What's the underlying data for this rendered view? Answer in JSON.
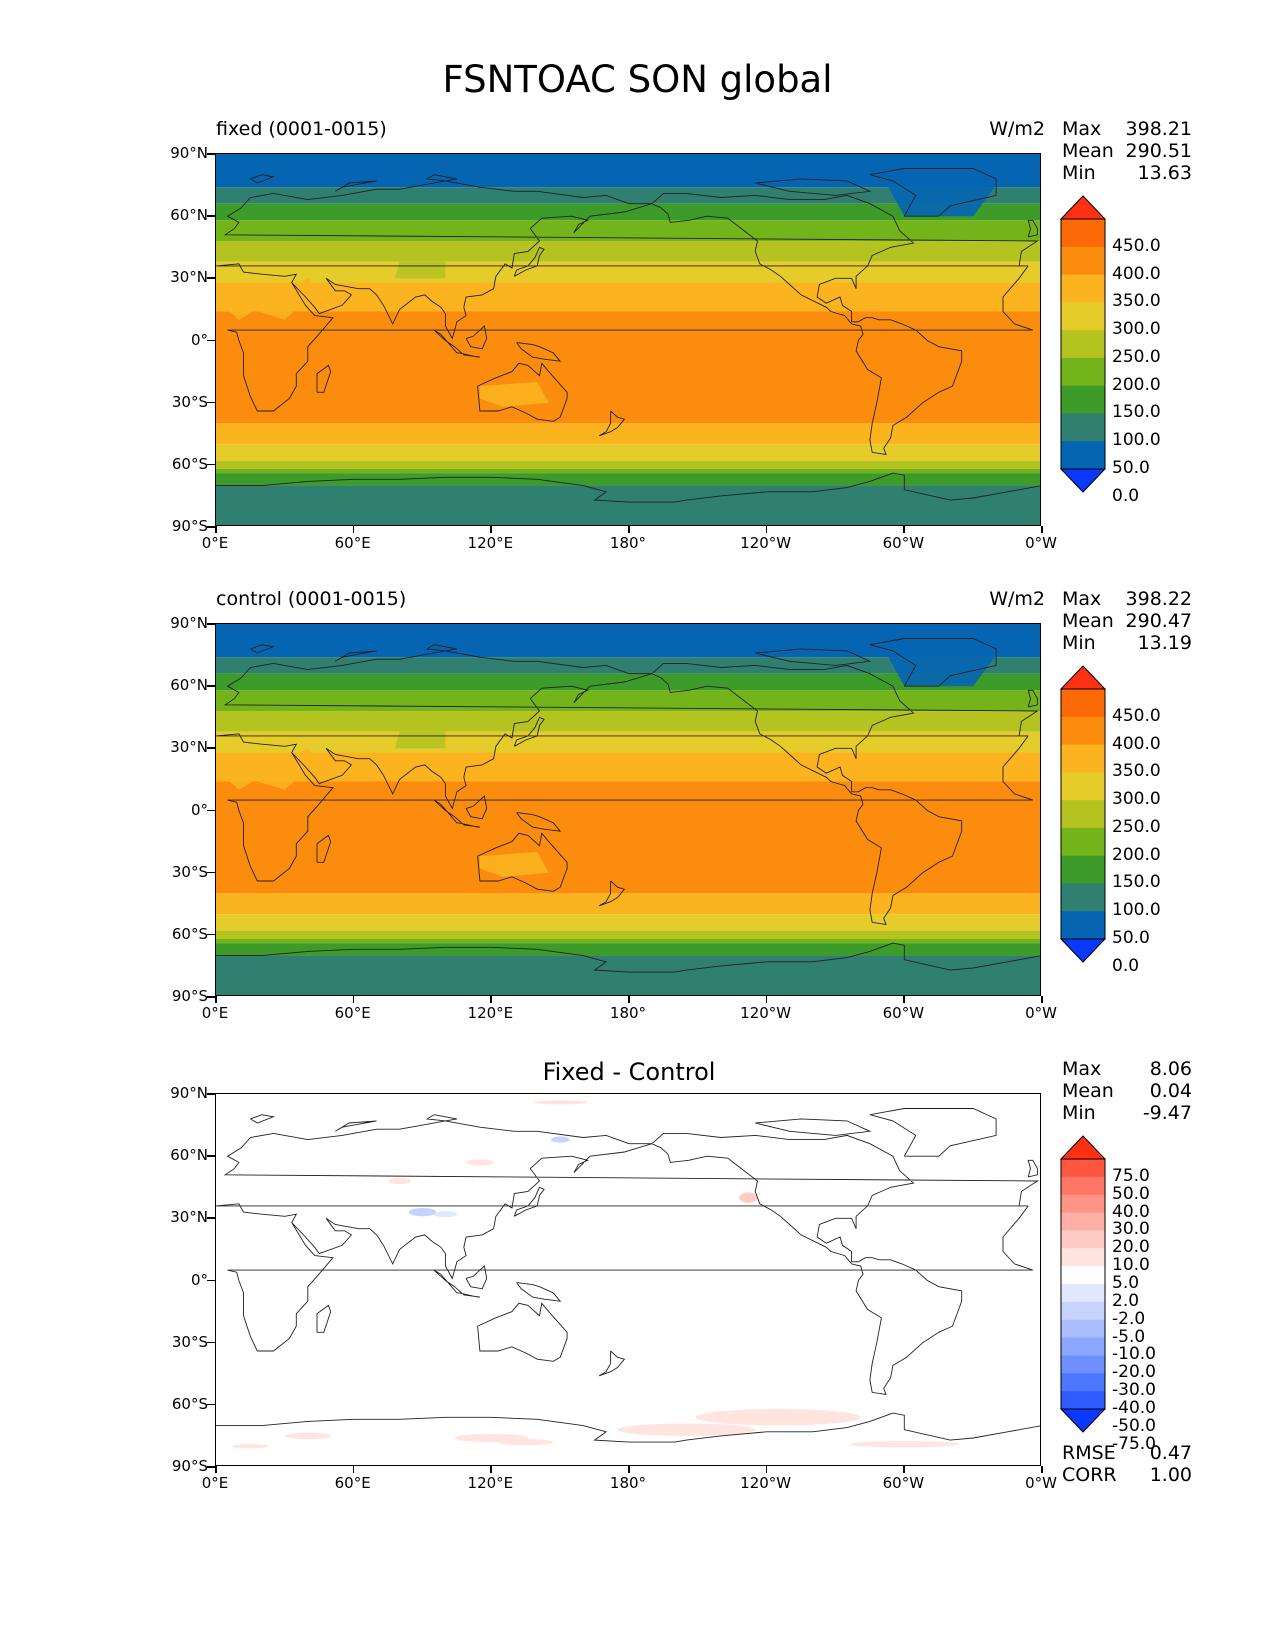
{
  "title": "FSNTOAC SON global",
  "axes": {
    "y_ticks": [
      "90°N",
      "60°N",
      "30°N",
      "0°",
      "30°S",
      "60°S",
      "90°S"
    ],
    "x_ticks": [
      "0°E",
      "60°E",
      "120°E",
      "180°",
      "120°W",
      "60°W",
      "0°W"
    ]
  },
  "panels": [
    {
      "label": "fixed (0001-0015)",
      "units": "W/m2",
      "stats": [
        {
          "label": "Max",
          "value": "398.21"
        },
        {
          "label": "Mean",
          "value": "290.51"
        },
        {
          "label": "Min",
          "value": "13.63"
        }
      ],
      "colorbar_labels": [
        "450.0",
        "400.0",
        "350.0",
        "300.0",
        "250.0",
        "200.0",
        "150.0",
        "100.0",
        "50.0",
        "0.0"
      ]
    },
    {
      "label": "control (0001-0015)",
      "units": "W/m2",
      "stats": [
        {
          "label": "Max",
          "value": "398.22"
        },
        {
          "label": "Mean",
          "value": "290.47"
        },
        {
          "label": "Min",
          "value": "13.19"
        }
      ],
      "colorbar_labels": [
        "450.0",
        "400.0",
        "350.0",
        "300.0",
        "250.0",
        "200.0",
        "150.0",
        "100.0",
        "50.0",
        "0.0"
      ]
    },
    {
      "title": "Fixed - Control",
      "stats": [
        {
          "label": "Max",
          "value": "8.06"
        },
        {
          "label": "Mean",
          "value": "0.04"
        },
        {
          "label": "Min",
          "value": "-9.47"
        }
      ],
      "colorbar_labels": [
        "75.0",
        "50.0",
        "40.0",
        "30.0",
        "20.0",
        "10.0",
        "5.0",
        "2.0",
        "-2.0",
        "-5.0",
        "-10.0",
        "-20.0",
        "-30.0",
        "-40.0",
        "-50.0",
        "-75.0"
      ],
      "extra_stats": [
        {
          "label": "RMSE",
          "value": "0.47"
        },
        {
          "label": "CORR",
          "value": "1.00"
        }
      ]
    }
  ],
  "colors": {
    "field_scale": [
      "#0a38ff",
      "#0565b2",
      "#2f8070",
      "#3d9b2a",
      "#74b41b",
      "#b5c321",
      "#e5cc2a",
      "#fbb31f",
      "#fb8c0e",
      "#fb6a06",
      "#ff3112"
    ],
    "diff_scale": [
      "#0a38ff",
      "#2e5cff",
      "#4d76ff",
      "#6e90ff",
      "#8ca7ff",
      "#a9bdff",
      "#c6d3ff",
      "#e0e7ff",
      "#ffffff",
      "#ffe4e0",
      "#ffcbc4",
      "#ffb0a6",
      "#ff9486",
      "#ff7764",
      "#ff5640",
      "#ff3112"
    ]
  }
}
